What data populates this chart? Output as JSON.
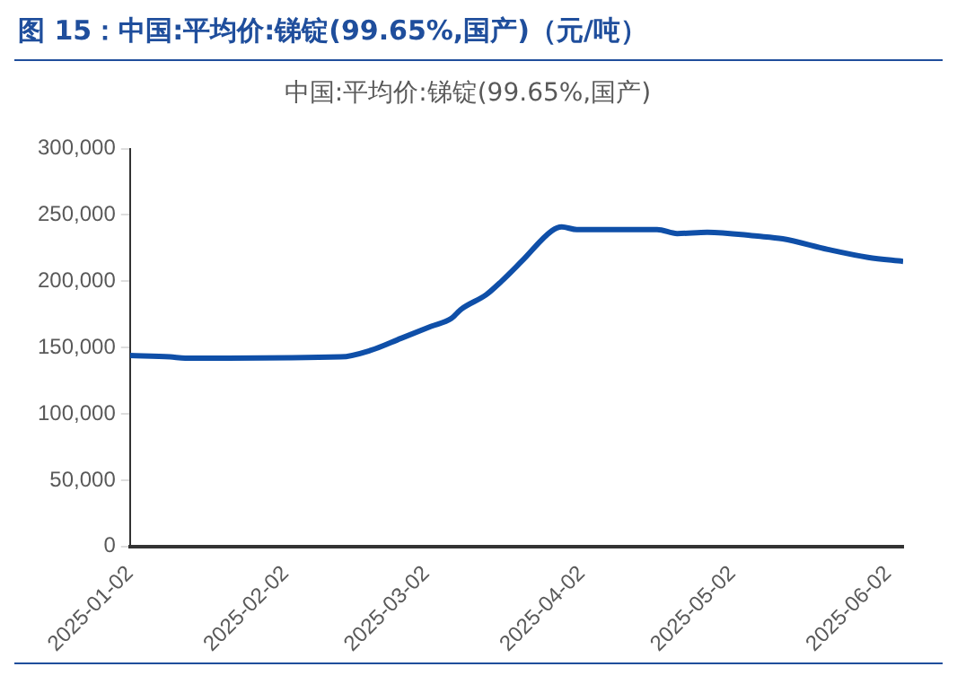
{
  "chart_data": {
    "type": "line",
    "title": "图 15：中国:平均价:锑锭(99.65%,国产)（元/吨）",
    "subtitle": "中国:平均价:锑锭(99.65%,国产)",
    "x": [
      "2025-01-02",
      "2025-01-10",
      "2025-01-13",
      "2025-02-13",
      "2025-02-19",
      "2025-02-25",
      "2025-03-03",
      "2025-03-07",
      "2025-03-09",
      "2025-03-14",
      "2025-03-17",
      "2025-03-21",
      "2025-03-27",
      "2025-03-29",
      "2025-04-01",
      "2025-04-17",
      "2025-04-21",
      "2025-04-27",
      "2025-05-07",
      "2025-05-12",
      "2025-05-21",
      "2025-05-29",
      "2025-06-05"
    ],
    "series": [
      {
        "color": "#0f4fa8",
        "values": [
          144000,
          143000,
          142000,
          143000,
          148000,
          157000,
          166000,
          172000,
          179000,
          190000,
          200000,
          215000,
          238000,
          241000,
          239000,
          239000,
          236000,
          237000,
          234000,
          232000,
          224000,
          218000,
          215000
        ]
      }
    ],
    "xlim": [
      "2025-01-02",
      "2025-06-05"
    ],
    "xticks": [
      "2025-01-02",
      "2025-02-02",
      "2025-03-02",
      "2025-04-02",
      "2025-05-02",
      "2025-06-02"
    ],
    "ylim": [
      0,
      300000
    ],
    "yticks": [
      {
        "value": 0,
        "label": "0"
      },
      {
        "value": 50000,
        "label": "50,000"
      },
      {
        "value": 100000,
        "label": "100,000"
      },
      {
        "value": 150000,
        "label": "150,000"
      },
      {
        "value": 200000,
        "label": "200,000"
      },
      {
        "value": 250000,
        "label": "250,000"
      },
      {
        "value": 300000,
        "label": "300,000"
      }
    ],
    "grid": false,
    "legend": false,
    "marker": "none",
    "line_style": "solid"
  }
}
